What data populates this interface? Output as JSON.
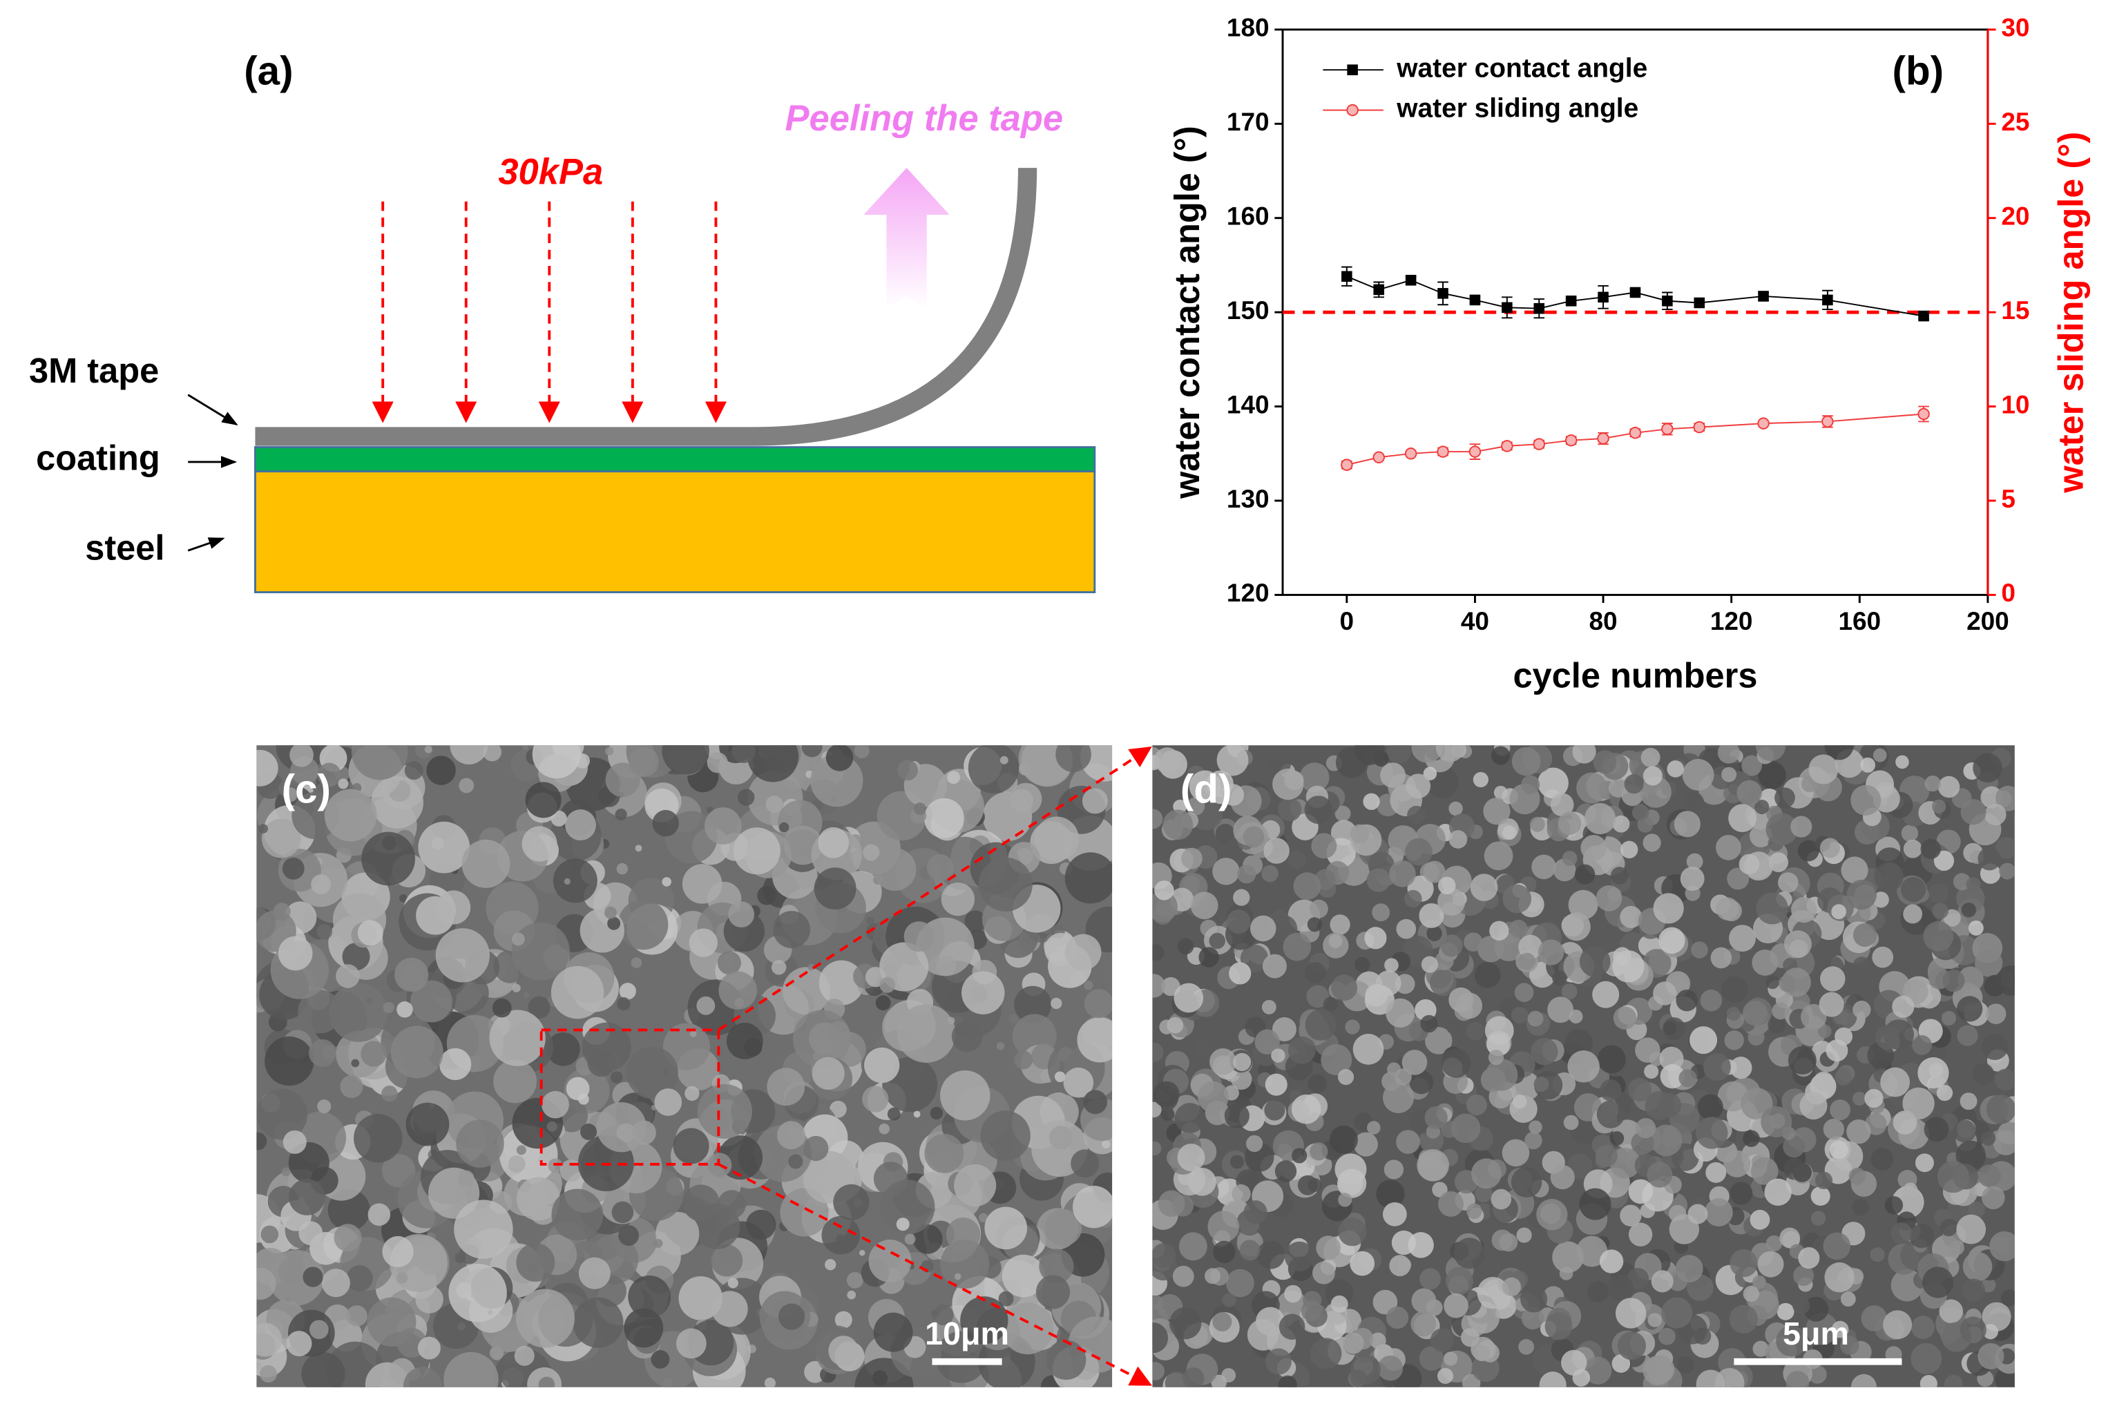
{
  "panels": {
    "a": {
      "label": "(a)",
      "peel": "Peeling the tape",
      "pressure": "30kPa",
      "layers": [
        "3M tape",
        "coating",
        "steel"
      ]
    },
    "c": {
      "label": "(c)",
      "scale_bar": "10μm"
    },
    "d": {
      "label": "(d)",
      "scale_bar": "5μm"
    }
  },
  "chart_data": {
    "type": "line",
    "panel_label": "(b)",
    "x_label": "cycle numbers",
    "y_label": "water contact angle (°)",
    "y2_label": "water sliding angle (°)",
    "x": [
      0,
      10,
      20,
      30,
      40,
      50,
      60,
      70,
      80,
      90,
      100,
      110,
      130,
      150,
      180
    ],
    "series": [
      {
        "name": "water contact angle",
        "color": "#000000",
        "marker": "square",
        "values": [
          153.8,
          152.4,
          153.4,
          152.0,
          151.3,
          150.5,
          150.4,
          151.2,
          151.6,
          152.1,
          151.2,
          151.0,
          151.7,
          151.3,
          149.6
        ],
        "errors": [
          1.0,
          0.8,
          0.4,
          1.2,
          0.3,
          1.1,
          1.0,
          0.3,
          1.2,
          0.3,
          0.9,
          0.3,
          0.4,
          1.0,
          0.3
        ]
      },
      {
        "name": "water sliding angle",
        "color": "#f03c3c",
        "marker": "circle",
        "axis": "y2",
        "values": [
          6.9,
          7.3,
          7.5,
          7.6,
          7.6,
          7.9,
          8.0,
          8.2,
          8.3,
          8.6,
          8.8,
          8.9,
          9.1,
          9.2,
          9.6
        ],
        "errors": [
          0.2,
          0.1,
          0.1,
          0.2,
          0.4,
          0.2,
          0.2,
          0.2,
          0.3,
          0.2,
          0.3,
          0.2,
          0.1,
          0.3,
          0.4
        ]
      }
    ],
    "reference_line": 150,
    "reference_color": "#ff0000",
    "xlim": [
      -20,
      200
    ],
    "xticks": [
      0,
      40,
      80,
      120,
      160,
      200
    ],
    "ylim": [
      120,
      180
    ],
    "yticks": [
      120,
      130,
      140,
      150,
      160,
      170,
      180
    ],
    "y2lim": [
      0,
      30
    ],
    "y2ticks": [
      0,
      5,
      10,
      15,
      20,
      25,
      30
    ],
    "y2_color": "#ff0000",
    "legend": "upper left"
  }
}
